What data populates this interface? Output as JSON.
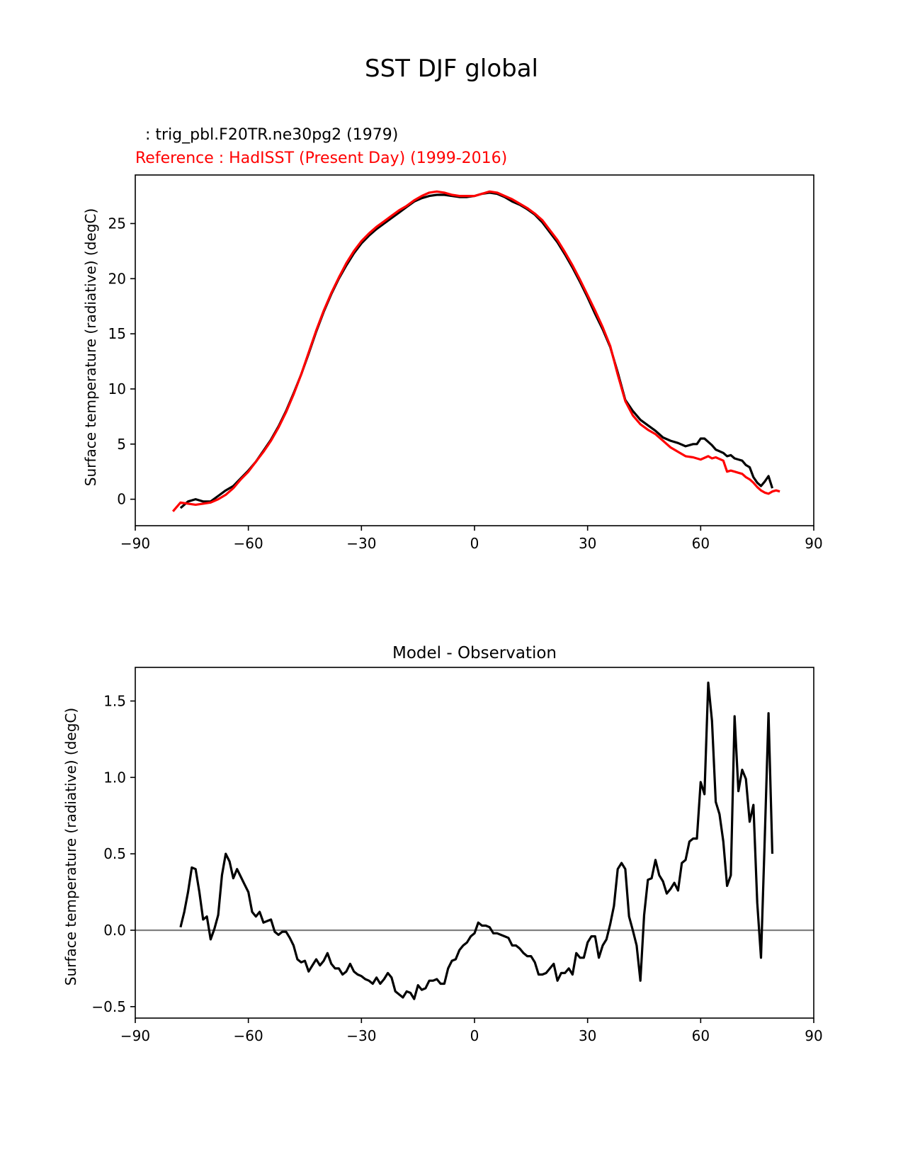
{
  "figure": {
    "title": "SST DJF global"
  },
  "chart_data": [
    {
      "type": "line",
      "test_label": "  : trig_pbl.F20TR.ne30pg2 (1979)",
      "reference_label": "Reference : HadISST (Present Day) (1999-2016)",
      "title": "",
      "xlabel": "",
      "ylabel": "Surface temperature (radiative) (degC)",
      "xlim": [
        -90,
        90
      ],
      "ylim": [
        -2.4,
        29.4
      ],
      "xticks": [
        -90,
        -60,
        -30,
        0,
        30,
        60,
        90
      ],
      "xtick_labels": [
        "−90",
        "−60",
        "−30",
        "0",
        "30",
        "60",
        "90"
      ],
      "yticks": [
        0,
        5,
        10,
        15,
        20,
        25
      ],
      "ytick_labels": [
        "0",
        "5",
        "10",
        "15",
        "20",
        "25"
      ],
      "colors": {
        "test": "#000000",
        "reference": "#ff0000"
      },
      "series": [
        {
          "name": "test",
          "x": [
            -78,
            -76,
            -74,
            -72,
            -70,
            -68,
            -66,
            -64,
            -62,
            -60,
            -58,
            -56,
            -54,
            -52,
            -50,
            -48,
            -46,
            -44,
            -42,
            -40,
            -38,
            -36,
            -34,
            -32,
            -30,
            -28,
            -26,
            -24,
            -22,
            -20,
            -18,
            -16,
            -14,
            -12,
            -10,
            -8,
            -6,
            -4,
            -2,
            0,
            2,
            4,
            6,
            8,
            10,
            12,
            14,
            16,
            18,
            20,
            22,
            24,
            26,
            28,
            30,
            32,
            34,
            36,
            38,
            40,
            42,
            44,
            46,
            48,
            50,
            52,
            54,
            56,
            58,
            59,
            60,
            61,
            62,
            63,
            64,
            66,
            67,
            68,
            69,
            70,
            71,
            72,
            73,
            74,
            75,
            76,
            77,
            78,
            79
          ],
          "values": [
            -0.8,
            -0.2,
            0.0,
            -0.2,
            -0.2,
            0.3,
            0.8,
            1.2,
            1.9,
            2.6,
            3.4,
            4.4,
            5.4,
            6.6,
            8.0,
            9.6,
            11.3,
            13.2,
            15.2,
            17.0,
            18.6,
            20.0,
            21.2,
            22.3,
            23.2,
            23.9,
            24.5,
            25.0,
            25.5,
            26.0,
            26.5,
            27.0,
            27.3,
            27.5,
            27.6,
            27.6,
            27.5,
            27.4,
            27.4,
            27.5,
            27.7,
            27.8,
            27.7,
            27.4,
            27.0,
            26.7,
            26.3,
            25.8,
            25.1,
            24.2,
            23.3,
            22.2,
            21.0,
            19.7,
            18.3,
            16.8,
            15.4,
            13.8,
            11.5,
            9.0,
            8.0,
            7.2,
            6.7,
            6.2,
            5.6,
            5.3,
            5.1,
            4.8,
            5.0,
            5.0,
            5.5,
            5.5,
            5.2,
            4.9,
            4.5,
            4.2,
            3.9,
            4.0,
            3.7,
            3.6,
            3.5,
            3.1,
            2.9,
            2.0,
            1.5,
            1.2,
            1.6,
            2.1,
            1.0
          ]
        },
        {
          "name": "reference",
          "x": [
            -80,
            -78,
            -76,
            -74,
            -72,
            -70,
            -68,
            -66,
            -64,
            -62,
            -60,
            -58,
            -56,
            -54,
            -52,
            -50,
            -48,
            -46,
            -44,
            -42,
            -40,
            -38,
            -36,
            -34,
            -32,
            -30,
            -28,
            -26,
            -24,
            -22,
            -20,
            -18,
            -16,
            -14,
            -12,
            -10,
            -8,
            -6,
            -4,
            -2,
            0,
            2,
            4,
            6,
            8,
            10,
            12,
            14,
            16,
            18,
            20,
            22,
            24,
            26,
            28,
            30,
            32,
            34,
            36,
            38,
            40,
            42,
            44,
            46,
            48,
            50,
            52,
            54,
            56,
            58,
            60,
            62,
            63,
            64,
            66,
            67,
            68,
            69,
            70,
            71,
            72,
            73,
            74,
            75,
            76,
            77,
            78,
            79,
            80,
            81
          ],
          "values": [
            -1.1,
            -0.3,
            -0.4,
            -0.5,
            -0.4,
            -0.3,
            0.0,
            0.4,
            1.0,
            1.8,
            2.5,
            3.4,
            4.3,
            5.3,
            6.5,
            7.9,
            9.5,
            11.3,
            13.3,
            15.3,
            17.1,
            18.7,
            20.1,
            21.4,
            22.5,
            23.4,
            24.1,
            24.7,
            25.2,
            25.7,
            26.2,
            26.6,
            27.1,
            27.5,
            27.8,
            27.9,
            27.8,
            27.6,
            27.5,
            27.5,
            27.5,
            27.7,
            27.9,
            27.8,
            27.5,
            27.2,
            26.8,
            26.4,
            25.9,
            25.3,
            24.4,
            23.5,
            22.4,
            21.2,
            19.9,
            18.5,
            17.1,
            15.6,
            13.9,
            11.3,
            8.9,
            7.6,
            6.8,
            6.3,
            5.9,
            5.3,
            4.7,
            4.3,
            3.9,
            3.8,
            3.6,
            3.9,
            3.7,
            3.8,
            3.5,
            2.5,
            2.6,
            2.5,
            2.4,
            2.3,
            2.0,
            1.8,
            1.5,
            1.1,
            0.8,
            0.6,
            0.5,
            0.7,
            0.8,
            0.7
          ]
        }
      ]
    },
    {
      "type": "line",
      "title": "Model - Observation",
      "xlabel": "",
      "ylabel": "Surface temperature (radiative) (degC)",
      "xlim": [
        -90,
        90
      ],
      "ylim": [
        -0.575,
        1.72
      ],
      "xticks": [
        -90,
        -60,
        -30,
        0,
        30,
        60,
        90
      ],
      "xtick_labels": [
        "−90",
        "−60",
        "−30",
        "0",
        "30",
        "60",
        "90"
      ],
      "yticks": [
        -0.5,
        0.0,
        0.5,
        1.0,
        1.5
      ],
      "ytick_labels": [
        "−0.5",
        "0.0",
        "0.5",
        "1.0",
        "1.5"
      ],
      "zero_line": true,
      "colors": {
        "diff": "#000000",
        "zero_line": "#808080"
      },
      "series": [
        {
          "name": "Model - Observation",
          "x": [
            -78,
            -77,
            -76,
            -75,
            -74,
            -73,
            -72,
            -71,
            -70,
            -69,
            -68,
            -67,
            -66,
            -65,
            -64,
            -63,
            -62,
            -61,
            -60,
            -59,
            -58,
            -57,
            -56,
            -55,
            -54,
            -53,
            -52,
            -51,
            -50,
            -49,
            -48,
            -47,
            -46,
            -45,
            -44,
            -43,
            -42,
            -41,
            -40,
            -39,
            -38,
            -37,
            -36,
            -35,
            -34,
            -33,
            -32,
            -31,
            -30,
            -29,
            -28,
            -27,
            -26,
            -25,
            -24,
            -23,
            -22,
            -21,
            -20,
            -19,
            -18,
            -17,
            -16,
            -15,
            -14,
            -13,
            -12,
            -11,
            -10,
            -9,
            -8,
            -7,
            -6,
            -5,
            -4,
            -3,
            -2,
            -1,
            0,
            1,
            2,
            3,
            4,
            5,
            6,
            7,
            8,
            9,
            10,
            11,
            12,
            13,
            14,
            15,
            16,
            17,
            18,
            19,
            20,
            21,
            22,
            23,
            24,
            25,
            26,
            27,
            28,
            29,
            30,
            31,
            32,
            33,
            34,
            35,
            36,
            37,
            38,
            39,
            40,
            41,
            42,
            43,
            44,
            45,
            46,
            47,
            48,
            49,
            50,
            51,
            52,
            53,
            54,
            55,
            56,
            57,
            58,
            59,
            60,
            61,
            62,
            63,
            64,
            65,
            66,
            67,
            68,
            69,
            70,
            71,
            72,
            73,
            74,
            75,
            76,
            77,
            78,
            79
          ],
          "values": [
            0.02,
            0.12,
            0.25,
            0.41,
            0.4,
            0.25,
            0.07,
            0.09,
            -0.06,
            0.01,
            0.1,
            0.36,
            0.5,
            0.45,
            0.34,
            0.4,
            0.35,
            0.3,
            0.25,
            0.12,
            0.09,
            0.12,
            0.05,
            0.06,
            0.07,
            -0.01,
            -0.03,
            -0.01,
            -0.01,
            -0.05,
            -0.1,
            -0.19,
            -0.21,
            -0.2,
            -0.27,
            -0.23,
            -0.19,
            -0.23,
            -0.2,
            -0.15,
            -0.22,
            -0.25,
            -0.25,
            -0.29,
            -0.27,
            -0.22,
            -0.27,
            -0.29,
            -0.3,
            -0.32,
            -0.33,
            -0.35,
            -0.31,
            -0.35,
            -0.32,
            -0.28,
            -0.31,
            -0.4,
            -0.42,
            -0.44,
            -0.4,
            -0.41,
            -0.45,
            -0.36,
            -0.39,
            -0.38,
            -0.33,
            -0.33,
            -0.32,
            -0.35,
            -0.35,
            -0.25,
            -0.2,
            -0.19,
            -0.13,
            -0.1,
            -0.08,
            -0.04,
            -0.02,
            0.05,
            0.03,
            0.03,
            0.02,
            -0.02,
            -0.02,
            -0.03,
            -0.04,
            -0.05,
            -0.1,
            -0.1,
            -0.12,
            -0.15,
            -0.17,
            -0.17,
            -0.21,
            -0.29,
            -0.29,
            -0.28,
            -0.25,
            -0.22,
            -0.33,
            -0.28,
            -0.28,
            -0.25,
            -0.29,
            -0.15,
            -0.18,
            -0.18,
            -0.08,
            -0.04,
            -0.04,
            -0.18,
            -0.1,
            -0.06,
            0.04,
            0.16,
            0.4,
            0.44,
            0.4,
            0.09,
            0.0,
            -0.1,
            -0.33,
            0.1,
            0.33,
            0.34,
            0.46,
            0.36,
            0.32,
            0.24,
            0.27,
            0.31,
            0.26,
            0.44,
            0.46,
            0.58,
            0.6,
            0.6,
            0.97,
            0.89,
            1.62,
            1.37,
            0.84,
            0.76,
            0.58,
            0.29,
            0.36,
            1.4,
            0.91,
            1.05,
            0.99,
            0.71,
            0.82,
            0.18,
            -0.18,
            0.6,
            1.42,
            0.5
          ]
        }
      ]
    }
  ]
}
